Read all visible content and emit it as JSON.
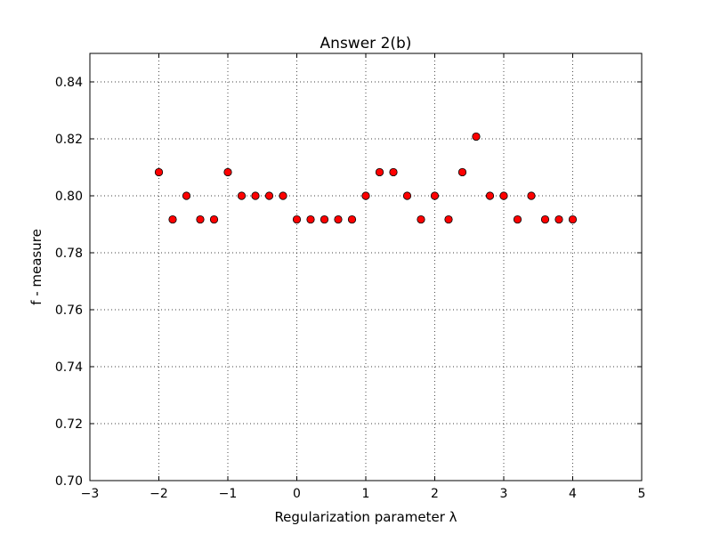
{
  "chart_data": {
    "type": "scatter",
    "title": "Answer 2(b)",
    "xlabel": "Regularization parameter λ",
    "ylabel": "f - measure",
    "xlim": [
      -3,
      5
    ],
    "ylim": [
      0.7,
      0.85
    ],
    "x_ticks": [
      -3,
      -2,
      -1,
      0,
      1,
      2,
      3,
      4,
      5
    ],
    "x_tick_labels": [
      "−3",
      "−2",
      "−1",
      "0",
      "1",
      "2",
      "3",
      "4",
      "5"
    ],
    "y_ticks": [
      0.7,
      0.72,
      0.74,
      0.76,
      0.78,
      0.8,
      0.82,
      0.84
    ],
    "y_tick_labels": [
      "0.70",
      "0.72",
      "0.74",
      "0.76",
      "0.78",
      "0.80",
      "0.82",
      "0.84"
    ],
    "grid": true,
    "marker_color": "#ff0000",
    "marker_edge": "#000000",
    "series": [
      {
        "x": [
          -2.0,
          -1.8,
          -1.6,
          -1.4,
          -1.2,
          -1.0,
          -0.8,
          -0.6,
          -0.4,
          -0.2,
          0.0,
          0.2,
          0.4,
          0.6,
          0.8,
          1.0,
          1.2,
          1.4,
          1.6,
          1.8,
          2.0,
          2.2,
          2.4,
          2.6,
          2.8,
          3.0,
          3.2,
          3.4,
          3.6,
          3.8,
          4.0
        ],
        "y": [
          0.8083,
          0.7917,
          0.8,
          0.7917,
          0.7917,
          0.8083,
          0.8,
          0.8,
          0.8,
          0.8,
          0.7917,
          0.7917,
          0.7917,
          0.7917,
          0.7917,
          0.8,
          0.8083,
          0.8083,
          0.8,
          0.7917,
          0.8,
          0.7917,
          0.8083,
          0.8208,
          0.8,
          0.8,
          0.7917,
          0.8,
          0.7917,
          0.7917,
          0.7917
        ]
      }
    ]
  }
}
